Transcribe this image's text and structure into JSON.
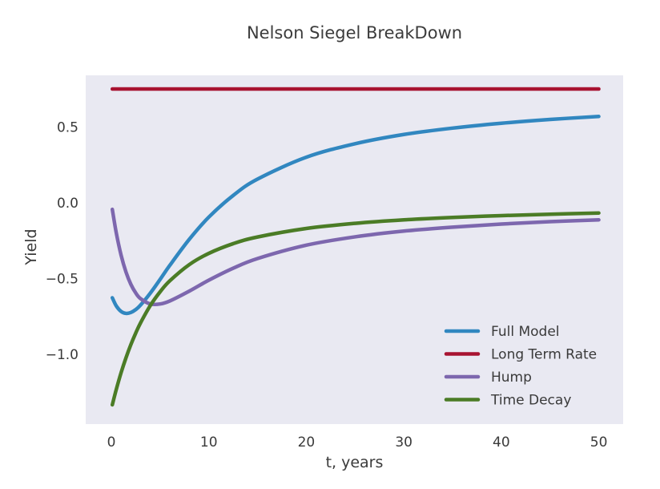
{
  "figure": {
    "title": "Nelson Siegel BreakDown"
  },
  "chart_data": {
    "type": "line",
    "title": "Nelson Siegel BreakDown",
    "xlabel": "t, years",
    "ylabel": "Yield",
    "xlim": [
      -2.63,
      52.5
    ],
    "ylim": [
      -1.46,
      0.84
    ],
    "xticks": [
      0,
      10,
      20,
      30,
      40,
      50
    ],
    "yticks": [
      0.5,
      0.0,
      -0.5,
      -1.0
    ],
    "grid": false,
    "plot_background": "#e9e9f2",
    "tick_label_color": "#3a3a3a",
    "legend": {
      "position": "lower right",
      "frame": false
    },
    "x": [
      0.1,
      0.5,
      1,
      1.5,
      2,
      2.5,
      3,
      4,
      5,
      6,
      8,
      10,
      12.5,
      15,
      20,
      25,
      30,
      35,
      40,
      45,
      50
    ],
    "series": [
      {
        "name": "Full Model",
        "color": "#3187c0",
        "values": [
          -0.627,
          -0.68,
          -0.717,
          -0.73,
          -0.724,
          -0.705,
          -0.675,
          -0.596,
          -0.506,
          -0.413,
          -0.241,
          -0.095,
          0.048,
          0.156,
          0.3,
          0.389,
          0.45,
          0.492,
          0.524,
          0.549,
          0.569
        ]
      },
      {
        "name": "Long Term Rate",
        "color": "#a81331",
        "values": [
          0.75,
          0.75,
          0.75,
          0.75,
          0.75,
          0.75,
          0.75,
          0.75,
          0.75,
          0.75,
          0.75,
          0.75,
          0.75,
          0.75,
          0.75,
          0.75,
          0.75,
          0.75,
          0.75,
          0.75,
          0.75
        ]
      },
      {
        "name": "Hump",
        "color": "#7d67ae",
        "values": [
          -0.044,
          -0.197,
          -0.346,
          -0.457,
          -0.538,
          -0.595,
          -0.633,
          -0.668,
          -0.668,
          -0.648,
          -0.583,
          -0.511,
          -0.432,
          -0.368,
          -0.28,
          -0.225,
          -0.187,
          -0.161,
          -0.141,
          -0.125,
          -0.113
        ]
      },
      {
        "name": "Time Decay",
        "color": "#4b7c26",
        "values": [
          -1.333,
          -1.233,
          -1.121,
          -1.023,
          -0.936,
          -0.86,
          -0.792,
          -0.678,
          -0.588,
          -0.515,
          -0.408,
          -0.334,
          -0.27,
          -0.226,
          -0.17,
          -0.136,
          -0.113,
          -0.097,
          -0.085,
          -0.076,
          -0.068
        ]
      }
    ]
  }
}
